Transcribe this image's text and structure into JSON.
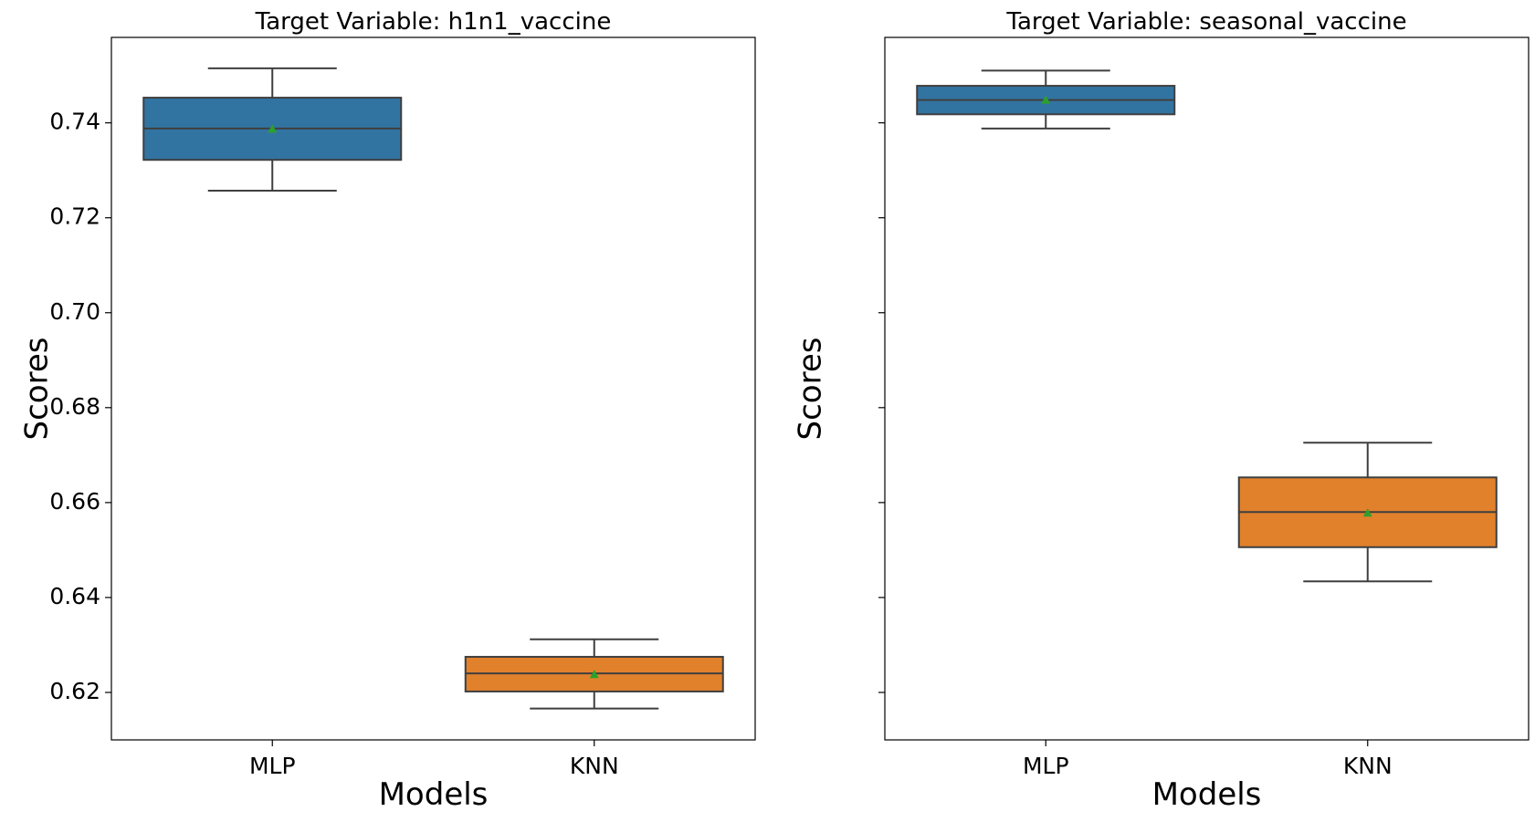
{
  "chart_data": [
    {
      "type": "box",
      "title": "Target Variable: h1n1_vaccine",
      "xlabel": "Models",
      "ylabel": "Scores",
      "ylim": [
        0.61,
        0.758
      ],
      "yticks": [
        0.62,
        0.64,
        0.66,
        0.68,
        0.7,
        0.72,
        0.74
      ],
      "ytick_labels": [
        "0.62",
        "0.64",
        "0.66",
        "0.68",
        "0.70",
        "0.72",
        "0.74"
      ],
      "show_ytick_labels": true,
      "categories": [
        "MLP",
        "KNN"
      ],
      "boxes": [
        {
          "label": "MLP",
          "min": 0.7257,
          "q1": 0.7322,
          "median": 0.7388,
          "q3": 0.7453,
          "max": 0.7515,
          "mean": 0.7387,
          "color": "#3274a1"
        },
        {
          "label": "KNN",
          "min": 0.6166,
          "q1": 0.6202,
          "median": 0.624,
          "q3": 0.6275,
          "max": 0.6312,
          "mean": 0.6238,
          "color": "#e1812c"
        }
      ]
    },
    {
      "type": "box",
      "title": "Target Variable: seasonal_vaccine",
      "xlabel": "Models",
      "ylabel": "Scores",
      "ylim": [
        0.61,
        0.758
      ],
      "yticks": [
        0.62,
        0.64,
        0.66,
        0.68,
        0.7,
        0.72,
        0.74
      ],
      "ytick_labels": [
        "",
        "",
        "",
        "",
        "",
        "",
        ""
      ],
      "show_ytick_labels": false,
      "categories": [
        "MLP",
        "KNN"
      ],
      "boxes": [
        {
          "label": "MLP",
          "min": 0.7388,
          "q1": 0.7418,
          "median": 0.7448,
          "q3": 0.7478,
          "max": 0.751,
          "mean": 0.7448,
          "color": "#3274a1"
        },
        {
          "label": "KNN",
          "min": 0.6434,
          "q1": 0.6506,
          "median": 0.658,
          "q3": 0.6653,
          "max": 0.6726,
          "mean": 0.6578,
          "color": "#e1812c"
        }
      ]
    }
  ],
  "colors": {
    "frame": "#000000",
    "box_edge": "#3f3f3f",
    "mean_marker": "#2ca02c"
  }
}
